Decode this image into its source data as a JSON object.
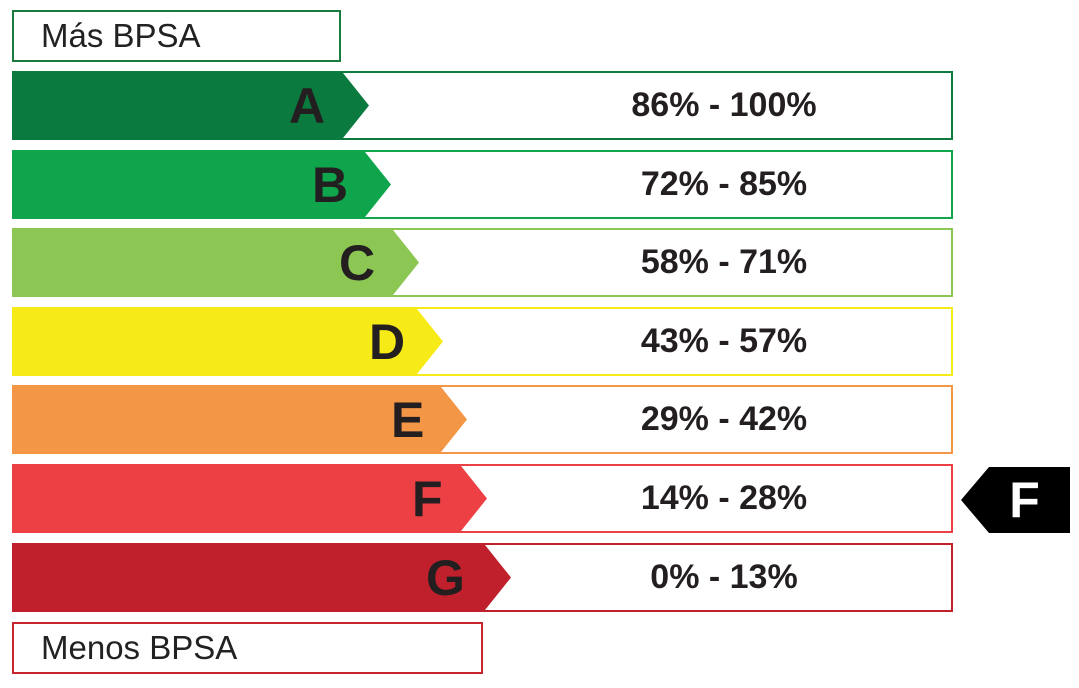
{
  "legend": {
    "top": "Más BPSA",
    "bottom": "Menos BPSA"
  },
  "bands": [
    {
      "grade": "A",
      "range": "86% - 100%",
      "color": "#0b7a3e"
    },
    {
      "grade": "B",
      "range": "72% - 85%",
      "color": "#0fa54c"
    },
    {
      "grade": "C",
      "range": "58% - 71%",
      "color": "#8cc653"
    },
    {
      "grade": "D",
      "range": "43% - 57%",
      "color": "#f6eb17"
    },
    {
      "grade": "E",
      "range": "29% - 42%",
      "color": "#f39646"
    },
    {
      "grade": "F",
      "range": "14% - 28%",
      "color": "#ec4044"
    },
    {
      "grade": "G",
      "range": "0% - 13%",
      "color": "#c0202b"
    }
  ],
  "indicator": {
    "grade": "F",
    "color": "#000000"
  }
}
